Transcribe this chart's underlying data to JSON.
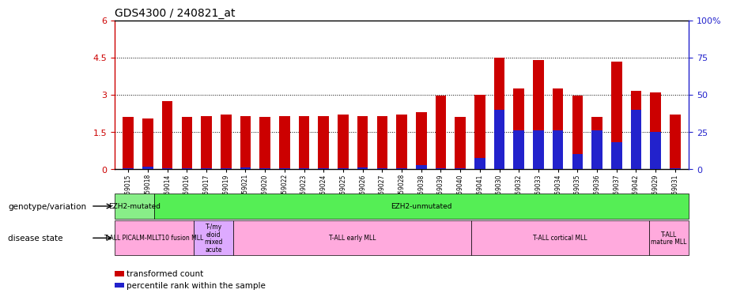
{
  "title": "GDS4300 / 240821_at",
  "samples": [
    "GSM759015",
    "GSM759018",
    "GSM759014",
    "GSM759016",
    "GSM759017",
    "GSM759019",
    "GSM759021",
    "GSM759020",
    "GSM759022",
    "GSM759023",
    "GSM759024",
    "GSM759025",
    "GSM759026",
    "GSM759027",
    "GSM759028",
    "GSM759038",
    "GSM759039",
    "GSM759040",
    "GSM759041",
    "GSM759030",
    "GSM759032",
    "GSM759033",
    "GSM759034",
    "GSM759035",
    "GSM759036",
    "GSM759037",
    "GSM759042",
    "GSM759029",
    "GSM759031"
  ],
  "red_values": [
    2.1,
    2.05,
    2.75,
    2.1,
    2.15,
    2.2,
    2.15,
    2.1,
    2.15,
    2.15,
    2.15,
    2.2,
    2.15,
    2.15,
    2.2,
    2.3,
    2.95,
    2.1,
    3.0,
    4.5,
    3.25,
    4.4,
    3.25,
    2.95,
    2.1,
    4.35,
    3.15,
    3.1,
    2.2
  ],
  "blue_values_pct": [
    0.5,
    1.5,
    0.5,
    0.5,
    0.5,
    0.5,
    1.0,
    0.5,
    0.5,
    0.5,
    0.5,
    0.5,
    0.8,
    0.5,
    0.5,
    2.5,
    0.5,
    0.5,
    7.5,
    40.0,
    26.0,
    26.0,
    26.0,
    10.0,
    26.0,
    18.0,
    40.0,
    25.0,
    0.5
  ],
  "ylim_left": [
    0,
    6
  ],
  "ylim_right": [
    0,
    100
  ],
  "yticks_left": [
    0,
    1.5,
    3.0,
    4.5,
    6.0
  ],
  "yticks_right": [
    0,
    25,
    50,
    75,
    100
  ],
  "ytick_labels_left": [
    "0",
    "1.5",
    "3",
    "4.5",
    "6"
  ],
  "ytick_labels_right": [
    "0",
    "25",
    "50",
    "75",
    "100%"
  ],
  "hlines": [
    1.5,
    3.0,
    4.5
  ],
  "bar_width": 0.55,
  "red_color": "#cc0000",
  "blue_color": "#2222cc",
  "title_fontsize": 10,
  "axis_color_left": "#cc0000",
  "axis_color_right": "#2222cc",
  "genotype_label": "genotype/variation",
  "disease_label": "disease state",
  "genotype_blocks": [
    {
      "label": "EZH2-mutated",
      "start": 0,
      "end": 2,
      "color": "#88ee88"
    },
    {
      "label": "EZH2-unmutated",
      "start": 2,
      "end": 29,
      "color": "#55ee55"
    }
  ],
  "disease_blocks": [
    {
      "label": "T-ALL PICALM-MLLT10 fusion MLL",
      "start": 0,
      "end": 4,
      "color": "#ffaadd"
    },
    {
      "label": "T-/my\neloid\nmixed\nacute",
      "start": 4,
      "end": 6,
      "color": "#ddaaff"
    },
    {
      "label": "T-ALL early MLL",
      "start": 6,
      "end": 18,
      "color": "#ffaadd"
    },
    {
      "label": "T-ALL cortical MLL",
      "start": 18,
      "end": 27,
      "color": "#ffaadd"
    },
    {
      "label": "T-ALL\nmature MLL",
      "start": 27,
      "end": 29,
      "color": "#ffaadd"
    }
  ],
  "legend_items": [
    {
      "label": "transformed count",
      "color": "#cc0000"
    },
    {
      "label": "percentile rank within the sample",
      "color": "#2222cc"
    }
  ],
  "bg_color": "#ffffff"
}
